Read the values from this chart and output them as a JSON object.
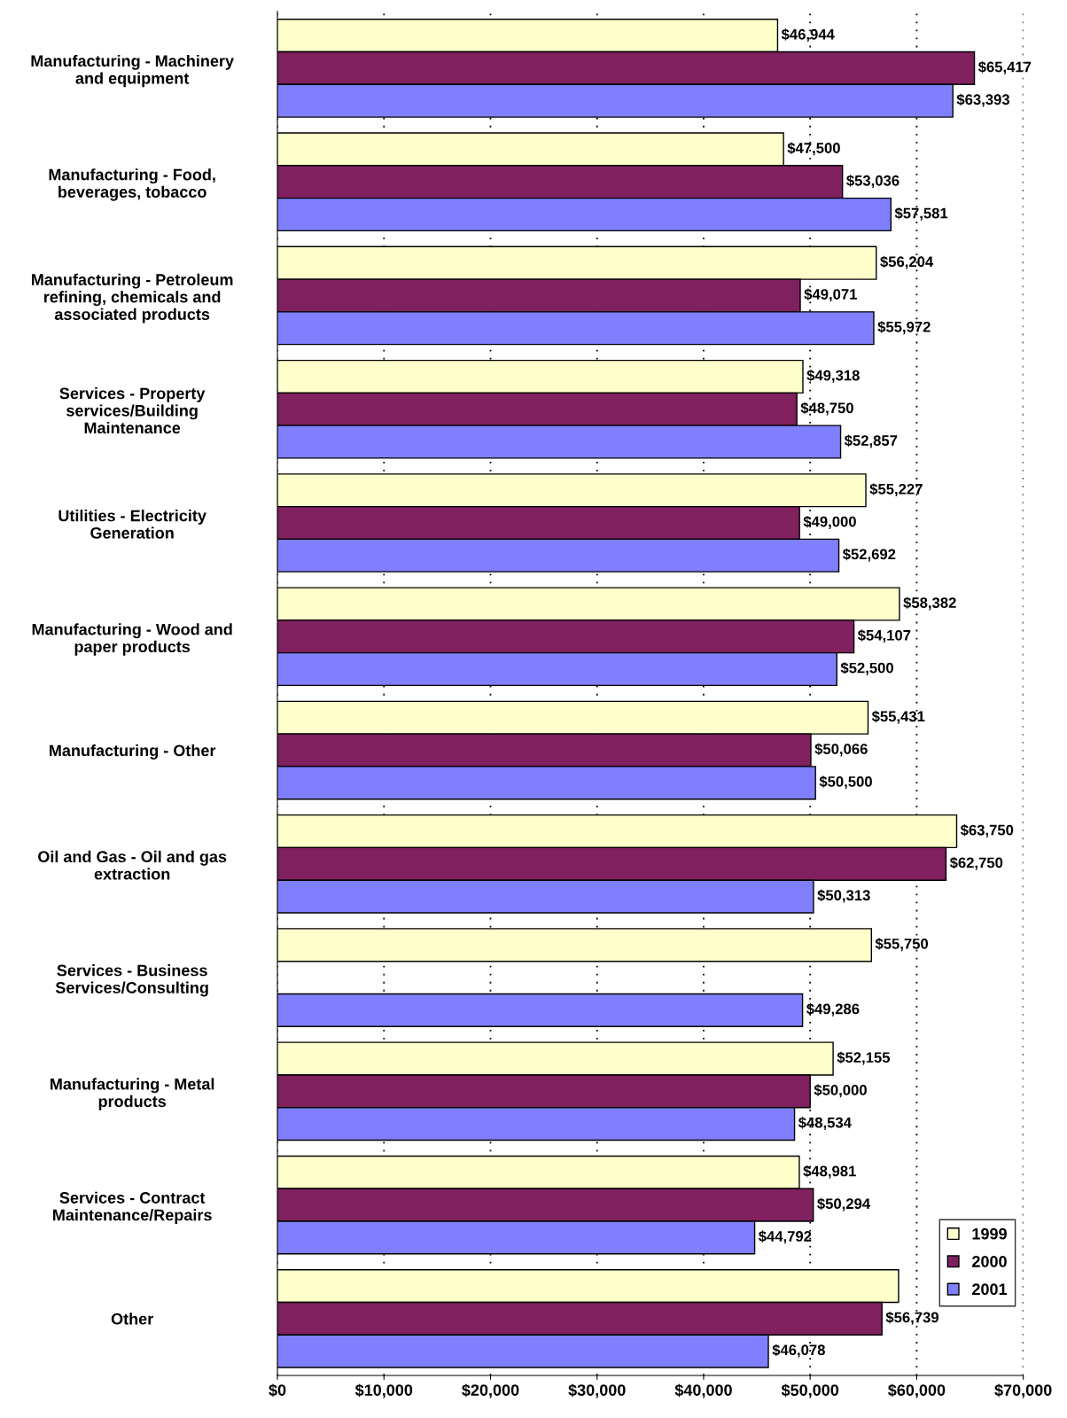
{
  "chart_data": {
    "type": "bar",
    "orientation": "horizontal",
    "categories": [
      "Manufacturing - Machinery\nand equipment",
      "Manufacturing - Food,\nbeverages, tobacco",
      "Manufacturing - Petroleum\nrefining, chemicals and\nassociated products",
      "Services - Property\nservices/Building\nMaintenance",
      "Utilities - Electricity\nGeneration",
      "Manufacturing - Wood and\npaper products",
      "Manufacturing - Other",
      "Oil and Gas - Oil and gas\nextraction",
      "Services - Business\nServices/Consulting",
      "Manufacturing - Metal\nproducts",
      "Services - Contract\nMaintenance/Repairs",
      "Other"
    ],
    "series": [
      {
        "name": "1999",
        "color": "#ffffcc",
        "values": [
          46944,
          47500,
          56204,
          49318,
          55227,
          58382,
          55431,
          63750,
          55750,
          52155,
          48981,
          58300
        ],
        "value_labels": [
          "$46,944",
          "$47,500",
          "$56,204",
          "$49,318",
          "$55,227",
          "$58,382",
          "$55,431",
          "$63,750",
          "$55,750",
          "$52,155",
          "$48,981",
          null
        ]
      },
      {
        "name": "2000",
        "color": "#80205f",
        "values": [
          65417,
          53036,
          49071,
          48750,
          49000,
          54107,
          50066,
          62750,
          null,
          50000,
          50294,
          56739
        ],
        "value_labels": [
          "$65,417",
          "$53,036",
          "$49,071",
          "$48,750",
          "$49,000",
          "$54,107",
          "$50,066",
          "$62,750",
          null,
          "$50,000",
          "$50,294",
          "$56,739"
        ]
      },
      {
        "name": "2001",
        "color": "#8080ff",
        "values": [
          63393,
          57581,
          55972,
          52857,
          52692,
          52500,
          50500,
          50313,
          49286,
          48534,
          44792,
          46078
        ],
        "value_labels": [
          "$63,393",
          "$57,581",
          "$55,972",
          "$52,857",
          "$52,692",
          "$52,500",
          "$50,500",
          "$50,313",
          "$49,286",
          "$48,534",
          "$44,792",
          "$46,078"
        ]
      }
    ],
    "xlim": [
      0,
      70000
    ],
    "xticks": [
      {
        "value": 0,
        "label": "$0"
      },
      {
        "value": 10000,
        "label": "$10,000"
      },
      {
        "value": 20000,
        "label": "$20,000"
      },
      {
        "value": 30000,
        "label": "$30,000"
      },
      {
        "value": 40000,
        "label": "$40,000"
      },
      {
        "value": 50000,
        "label": "$50,000"
      },
      {
        "value": 60000,
        "label": "$60,000"
      },
      {
        "value": 70000,
        "label": "$70,000"
      }
    ],
    "grid": "x",
    "legend": "bottom right"
  }
}
